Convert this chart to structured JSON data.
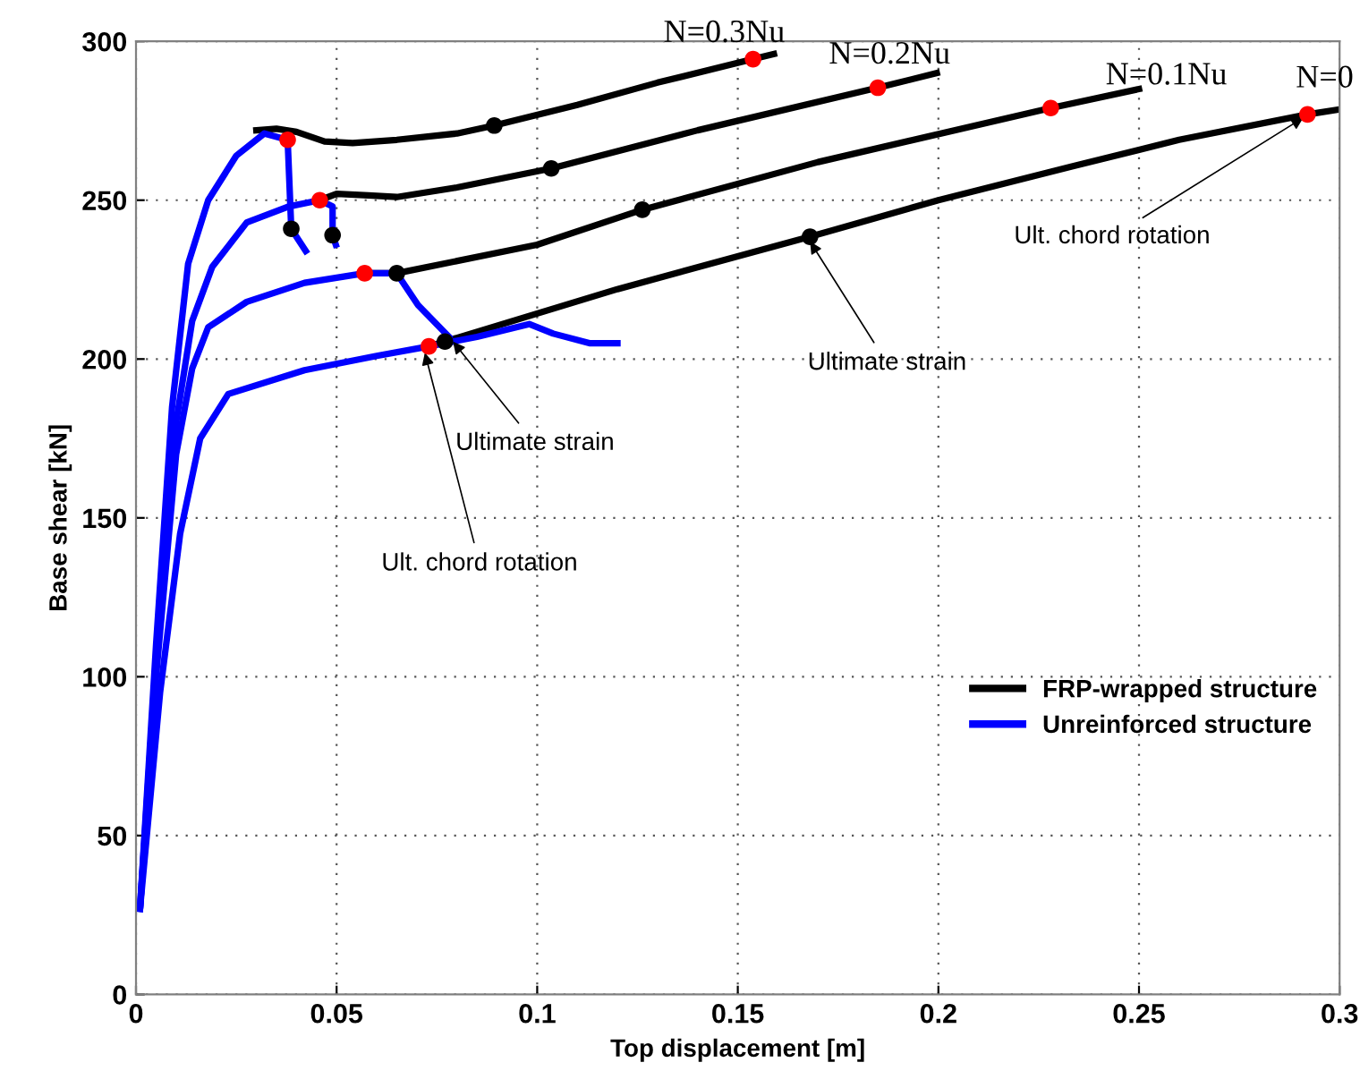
{
  "chart_data": {
    "type": "line",
    "xlabel": "Top displacement [m]",
    "ylabel": "Base shear [kN]",
    "xlim": [
      0,
      0.3
    ],
    "xticks": [
      0,
      0.05,
      0.1,
      0.15,
      0.2,
      0.25,
      0.3
    ],
    "ylim": [
      0,
      300
    ],
    "yticks": [
      0,
      50,
      100,
      150,
      200,
      250,
      300
    ],
    "grid": true,
    "legend": "right",
    "line_style": "solid",
    "marker": "none",
    "series": [
      {
        "name": "FRP-wrapped structure",
        "color": "#000000",
        "x": [
          0.03,
          0.035,
          0.04,
          0.047,
          0.054,
          0.065,
          0.08,
          0.0893,
          0.11,
          0.13,
          0.1538,
          0.159
        ],
        "values": [
          272,
          272.5,
          271.5,
          268.5,
          268,
          269,
          271,
          273.5,
          280,
          287,
          294.4,
          296
        ]
      },
      {
        "color": "#000000",
        "x": [
          0.0458,
          0.05,
          0.058,
          0.065,
          0.08,
          0.1035,
          0.14,
          0.1849,
          0.1996
        ],
        "values": [
          250,
          252,
          251.5,
          251,
          254,
          260,
          272,
          285.4,
          290
        ]
      },
      {
        "color": "#000000",
        "x": [
          0.057,
          0.065,
          0.1,
          0.1262,
          0.17,
          0.228,
          0.25
        ],
        "values": [
          227,
          227,
          236,
          247,
          262,
          279,
          285
        ]
      },
      {
        "color": "#000000",
        "x": [
          0.073,
          0.077,
          0.12,
          0.168,
          0.2,
          0.2333,
          0.26,
          0.292,
          0.3
        ],
        "values": [
          204,
          205.5,
          222,
          238.5,
          250,
          260.6,
          269,
          277,
          278.6
        ]
      },
      {
        "name": "Unreinforced structure",
        "color": "#0000ff",
        "x": [
          0.001,
          0.005,
          0.009,
          0.013,
          0.018,
          0.025,
          0.032,
          0.0378,
          0.0387,
          0.0423
        ],
        "values": [
          27,
          110,
          185,
          230,
          250,
          264,
          271,
          269,
          241,
          234
        ]
      },
      {
        "color": "#0000ff",
        "x": [
          0.001,
          0.005,
          0.01,
          0.014,
          0.019,
          0.0276,
          0.038,
          0.0458,
          0.049,
          0.049,
          0.0498
        ],
        "values": [
          27,
          105,
          180,
          212,
          229,
          243,
          248,
          250,
          248,
          239,
          236
        ]
      },
      {
        "color": "#0000ff",
        "x": [
          0.001,
          0.005,
          0.01,
          0.014,
          0.018,
          0.0276,
          0.042,
          0.057,
          0.065,
          0.0703,
          0.078
        ],
        "values": [
          27,
          100,
          170,
          197,
          210,
          218,
          224,
          227,
          227,
          217,
          207
        ]
      },
      {
        "color": "#0000ff",
        "x": [
          0.001,
          0.006,
          0.011,
          0.016,
          0.023,
          0.042,
          0.06,
          0.073,
          0.085,
          0.098,
          0.104,
          0.113,
          0.12
        ],
        "values": [
          27,
          95,
          145,
          175,
          189,
          196.5,
          201,
          204,
          207,
          211,
          208,
          205,
          205
        ]
      },
      {
        "type": "scatter",
        "marker": "circle",
        "color": "#ff0000",
        "x": [
          0.0378,
          0.0458,
          0.057,
          0.073,
          0.1538,
          0.1849,
          0.228,
          0.292
        ],
        "values": [
          269,
          250,
          227,
          204,
          294.4,
          285.4,
          279,
          277
        ]
      },
      {
        "type": "scatter",
        "marker": "circle",
        "color": "#000000",
        "x": [
          0.0387,
          0.049,
          0.065,
          0.077,
          0.0893,
          0.1035,
          0.1262,
          0.168
        ],
        "values": [
          241,
          239,
          227,
          205.5,
          273.5,
          260,
          247,
          238.5
        ]
      }
    ],
    "annotations": [
      {
        "text": "Ult. chord rotation",
        "x": 0.072,
        "y": 202
      },
      {
        "text": "Ultimate strain",
        "x": 0.079,
        "y": 205.5
      },
      {
        "text": "Ultimate strain",
        "x": 0.168,
        "y": 237
      },
      {
        "text": "Ult. chord rotation",
        "x": 0.291,
        "y": 276
      },
      {
        "text": "N=0.3Nu",
        "x": 0.159,
        "y": 296
      },
      {
        "text": "N=0.2Nu",
        "x": 0.1996,
        "y": 290
      },
      {
        "text": "N=0.1Nu",
        "x": 0.25,
        "y": 285
      },
      {
        "text": "N=0",
        "x": 0.3,
        "y": 278.6
      }
    ]
  }
}
